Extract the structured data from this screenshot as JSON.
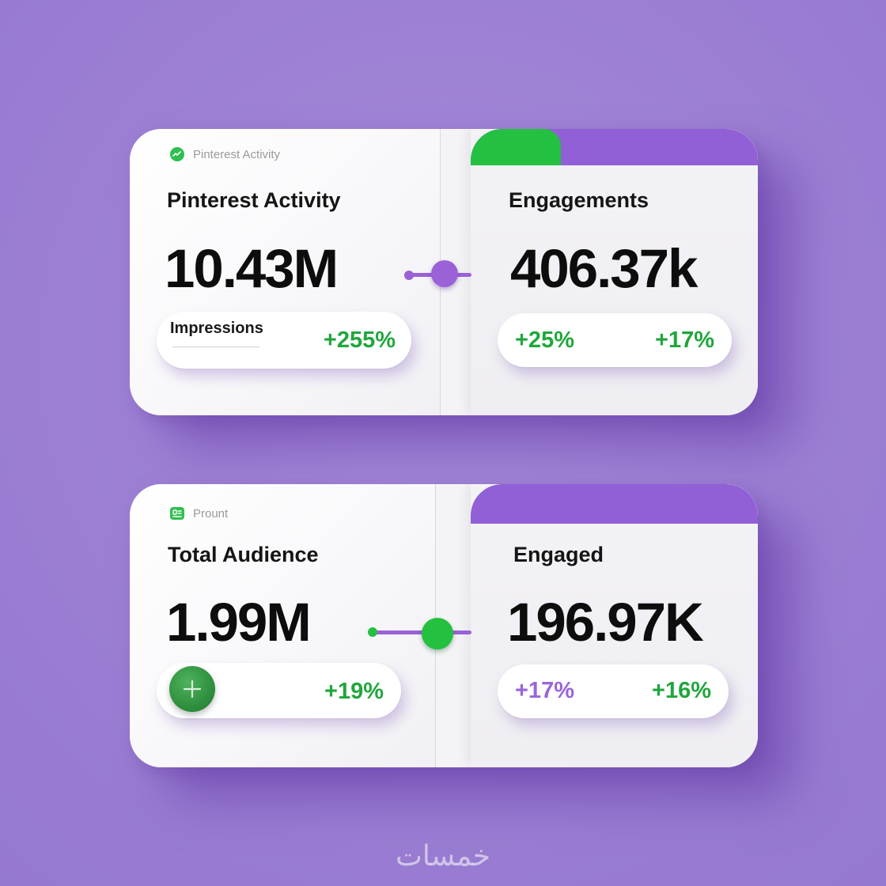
{
  "colors": {
    "background": "#9c7fd3",
    "accent_purple": "#9160d6",
    "accent_green": "#23c042",
    "positive_green": "#20a63c",
    "percent_purple": "#9a64d8"
  },
  "card_pinterest": {
    "brand_icon": "pinterest-activity-icon",
    "brand_label": "Pinterest Activity",
    "title": "Pinterest Activity",
    "value": "10.43M",
    "pill_label": "Impressions",
    "pill_change": "+255%"
  },
  "card_engagements": {
    "title": "Engagements",
    "value": "406.37k",
    "change_1": "+25%",
    "change_2": "+17%"
  },
  "card_audience": {
    "brand_icon": "account-icon",
    "brand_label": "Prount",
    "title": "Total Audience",
    "value": "1.99M",
    "add_icon": "plus-icon",
    "pill_change": "+19%"
  },
  "card_engaged": {
    "title": "Engaged",
    "value": "196.97K",
    "change_1": "+17%",
    "change_2": "+16%"
  },
  "watermark": "خمسات"
}
